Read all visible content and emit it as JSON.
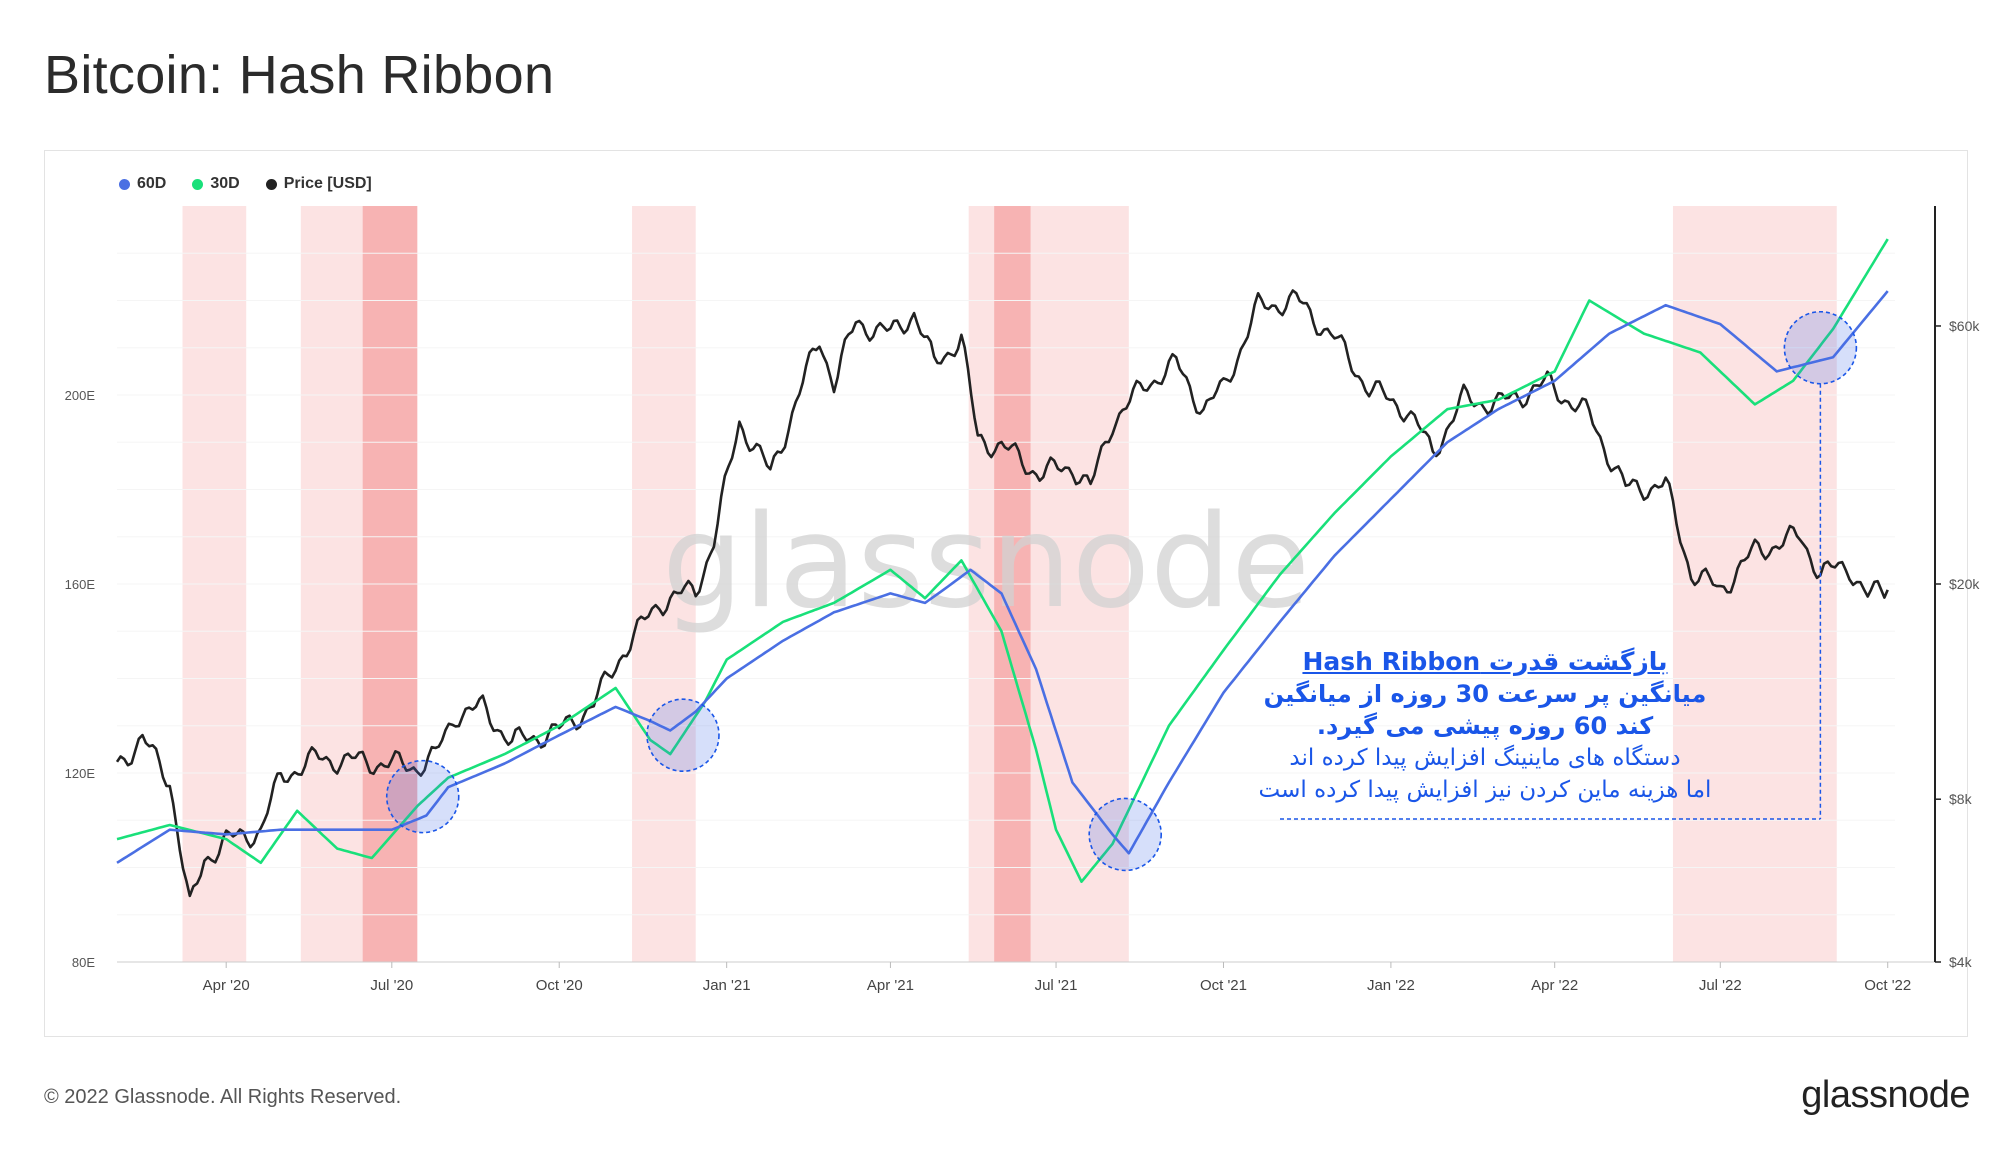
{
  "title": "Bitcoin: Hash Ribbon",
  "footer": {
    "copyright": "© 2022 Glassnode. All Rights Reserved.",
    "brand": "glassnode"
  },
  "watermark": "glassnode",
  "annotation": {
    "heading": "بازگشت قدرت Hash Ribbon",
    "line1": "میانگین پر سرعت 30 روزه از میانگین",
    "line2": "کند 60 روزه پیشی می گیرد.",
    "line3": "دستگاه های ماینینگ افزایش پیدا کرده اند",
    "line4": "اما هزینه ماین کردن نیز افزایش پیدا کرده است"
  },
  "colors": {
    "s60": "#4a6fe3",
    "s30": "#19e07a",
    "price": "#222222",
    "band": "#fce3e3",
    "bandDark": "#f7b3b3",
    "circle": "#1a56e8"
  },
  "chart_data": {
    "type": "line",
    "legend": "top-left",
    "x_ticks": [
      "Apr '20",
      "Jul '20",
      "Oct '20",
      "Jan '21",
      "Apr '21",
      "Jul '21",
      "Oct '21",
      "Jan '22",
      "Apr '22",
      "Jul '22",
      "Oct '22"
    ],
    "y_left": {
      "ticks": [
        "80E",
        "120E",
        "160E",
        "200E"
      ],
      "range": [
        80,
        240
      ]
    },
    "y_right": {
      "ticks": [
        "$4k",
        "$8k",
        "$20k",
        "$60k"
      ],
      "scale": "log",
      "range": [
        4000,
        100000
      ]
    },
    "series": [
      {
        "name": "60D",
        "axis": "left",
        "points": [
          [
            "2020-02-01",
            101
          ],
          [
            "2020-03-01",
            108
          ],
          [
            "2020-04-01",
            107
          ],
          [
            "2020-05-01",
            108
          ],
          [
            "2020-06-01",
            108
          ],
          [
            "2020-07-01",
            108
          ],
          [
            "2020-07-20",
            111
          ],
          [
            "2020-08-01",
            117
          ],
          [
            "2020-09-01",
            122
          ],
          [
            "2020-10-01",
            128
          ],
          [
            "2020-11-01",
            134
          ],
          [
            "2020-11-20",
            131
          ],
          [
            "2020-12-01",
            129
          ],
          [
            "2020-12-15",
            133
          ],
          [
            "2021-01-01",
            140
          ],
          [
            "2021-02-01",
            148
          ],
          [
            "2021-03-01",
            154
          ],
          [
            "2021-04-01",
            158
          ],
          [
            "2021-04-20",
            156
          ],
          [
            "2021-05-01",
            159
          ],
          [
            "2021-05-15",
            163
          ],
          [
            "2021-06-01",
            158
          ],
          [
            "2021-06-20",
            142
          ],
          [
            "2021-07-10",
            118
          ],
          [
            "2021-08-01",
            107
          ],
          [
            "2021-08-10",
            103
          ],
          [
            "2021-09-01",
            118
          ],
          [
            "2021-10-01",
            137
          ],
          [
            "2021-11-01",
            152
          ],
          [
            "2021-12-01",
            166
          ],
          [
            "2022-01-01",
            178
          ],
          [
            "2022-02-01",
            190
          ],
          [
            "2022-03-01",
            197
          ],
          [
            "2022-04-01",
            203
          ],
          [
            "2022-05-01",
            213
          ],
          [
            "2022-06-01",
            219
          ],
          [
            "2022-07-01",
            215
          ],
          [
            "2022-08-01",
            205
          ],
          [
            "2022-09-01",
            208
          ],
          [
            "2022-10-01",
            222
          ]
        ]
      },
      {
        "name": "30D",
        "axis": "left",
        "points": [
          [
            "2020-02-01",
            106
          ],
          [
            "2020-03-01",
            109
          ],
          [
            "2020-04-01",
            106
          ],
          [
            "2020-04-20",
            101
          ],
          [
            "2020-05-10",
            112
          ],
          [
            "2020-06-01",
            104
          ],
          [
            "2020-06-20",
            102
          ],
          [
            "2020-07-15",
            113
          ],
          [
            "2020-08-01",
            119
          ],
          [
            "2020-09-01",
            124
          ],
          [
            "2020-10-01",
            130
          ],
          [
            "2020-11-01",
            138
          ],
          [
            "2020-11-20",
            127
          ],
          [
            "2020-12-01",
            124
          ],
          [
            "2020-12-20",
            135
          ],
          [
            "2021-01-01",
            144
          ],
          [
            "2021-02-01",
            152
          ],
          [
            "2021-03-01",
            156
          ],
          [
            "2021-04-01",
            163
          ],
          [
            "2021-04-20",
            157
          ],
          [
            "2021-05-10",
            165
          ],
          [
            "2021-06-01",
            150
          ],
          [
            "2021-06-20",
            125
          ],
          [
            "2021-07-01",
            108
          ],
          [
            "2021-07-15",
            97
          ],
          [
            "2021-08-01",
            105
          ],
          [
            "2021-09-01",
            130
          ],
          [
            "2021-10-01",
            146
          ],
          [
            "2021-11-01",
            162
          ],
          [
            "2021-12-01",
            175
          ],
          [
            "2022-01-01",
            187
          ],
          [
            "2022-02-01",
            197
          ],
          [
            "2022-03-01",
            199
          ],
          [
            "2022-04-01",
            205
          ],
          [
            "2022-04-20",
            220
          ],
          [
            "2022-05-20",
            213
          ],
          [
            "2022-06-20",
            209
          ],
          [
            "2022-07-20",
            198
          ],
          [
            "2022-08-10",
            203
          ],
          [
            "2022-09-01",
            214
          ],
          [
            "2022-10-01",
            233
          ]
        ]
      },
      {
        "name": "Price [USD]",
        "axis": "right",
        "points": [
          [
            "2020-02-01",
            9300
          ],
          [
            "2020-02-15",
            10300
          ],
          [
            "2020-03-01",
            8700
          ],
          [
            "2020-03-12",
            5000
          ],
          [
            "2020-03-20",
            6200
          ],
          [
            "2020-04-01",
            6700
          ],
          [
            "2020-04-20",
            7000
          ],
          [
            "2020-05-01",
            8800
          ],
          [
            "2020-05-20",
            9500
          ],
          [
            "2020-06-15",
            9400
          ],
          [
            "2020-07-15",
            9200
          ],
          [
            "2020-07-25",
            9600
          ],
          [
            "2020-08-05",
            11500
          ],
          [
            "2020-08-20",
            11800
          ],
          [
            "2020-09-05",
            10200
          ],
          [
            "2020-10-01",
            10700
          ],
          [
            "2020-10-20",
            12000
          ],
          [
            "2020-11-05",
            15000
          ],
          [
            "2020-11-25",
            18500
          ],
          [
            "2020-12-15",
            19500
          ],
          [
            "2020-12-25",
            24000
          ],
          [
            "2021-01-08",
            40000
          ],
          [
            "2021-01-25",
            32000
          ],
          [
            "2021-02-10",
            45000
          ],
          [
            "2021-02-21",
            57000
          ],
          [
            "2021-03-01",
            47000
          ],
          [
            "2021-03-13",
            61000
          ],
          [
            "2021-04-01",
            58000
          ],
          [
            "2021-04-14",
            63500
          ],
          [
            "2021-04-25",
            51000
          ],
          [
            "2021-05-10",
            57000
          ],
          [
            "2021-05-19",
            37000
          ],
          [
            "2021-06-01",
            36000
          ],
          [
            "2021-06-22",
            32000
          ],
          [
            "2021-07-10",
            33000
          ],
          [
            "2021-07-20",
            30000
          ],
          [
            "2021-08-01",
            40000
          ],
          [
            "2021-08-20",
            47000
          ],
          [
            "2021-09-05",
            51000
          ],
          [
            "2021-09-20",
            42000
          ],
          [
            "2021-10-01",
            46000
          ],
          [
            "2021-10-20",
            65000
          ],
          [
            "2021-11-10",
            67000
          ],
          [
            "2021-12-01",
            57000
          ],
          [
            "2021-12-20",
            46000
          ],
          [
            "2022-01-10",
            42000
          ],
          [
            "2022-01-24",
            35000
          ],
          [
            "2022-02-10",
            44000
          ],
          [
            "2022-03-01",
            43000
          ],
          [
            "2022-03-28",
            47000
          ],
          [
            "2022-04-20",
            41000
          ],
          [
            "2022-05-10",
            30000
          ],
          [
            "2022-06-01",
            30500
          ],
          [
            "2022-06-15",
            21000
          ],
          [
            "2022-07-01",
            19500
          ],
          [
            "2022-07-20",
            23000
          ],
          [
            "2022-08-14",
            24500
          ],
          [
            "2022-08-25",
            21000
          ],
          [
            "2022-09-10",
            21500
          ],
          [
            "2022-09-20",
            19000
          ],
          [
            "2022-10-01",
            19500
          ]
        ]
      }
    ],
    "highlight_bands": [
      [
        "2020-03-08",
        "2020-04-12"
      ],
      [
        "2020-05-12",
        "2020-07-15"
      ],
      [
        "2020-11-10",
        "2020-12-15"
      ],
      [
        "2021-05-14",
        "2021-08-10"
      ],
      [
        "2022-06-05",
        "2022-09-03"
      ]
    ],
    "highlight_bands_dark": [
      [
        "2020-06-15",
        "2020-07-15"
      ],
      [
        "2021-05-28",
        "2021-06-17"
      ]
    ],
    "crossover_markers": [
      [
        "2020-07-18",
        115
      ],
      [
        "2020-12-08",
        128
      ],
      [
        "2021-08-08",
        107
      ],
      [
        "2022-08-25",
        210
      ]
    ]
  }
}
